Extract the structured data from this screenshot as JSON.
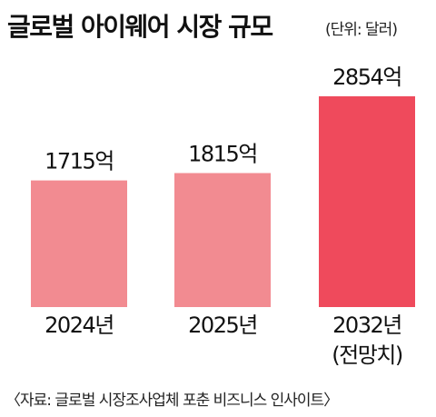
{
  "chart_data": {
    "type": "bar",
    "title": "글로벌 아이웨어 시장 규모",
    "subtitle": "(단위: 달러)",
    "categories": [
      "2024년",
      "2025년",
      "2032년"
    ],
    "category_notes": [
      "",
      "",
      "(전망치)"
    ],
    "values": [
      1715,
      1815,
      2854
    ],
    "value_labels": [
      "1715억",
      "1815억",
      "2854억"
    ],
    "unit": "억 달러",
    "xlabel": "",
    "ylabel": "",
    "ylim": [
      0,
      3000
    ],
    "grid": false,
    "colors": [
      "#f28b91",
      "#f28b91",
      "#ef4a5c"
    ],
    "source": "〈자료: 글로벌 시장조사업체 포춘 비즈니스 인사이트〉"
  }
}
